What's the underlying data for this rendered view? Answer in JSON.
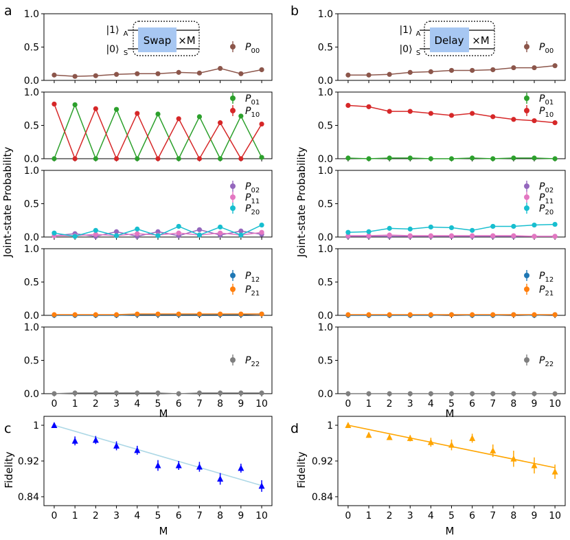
{
  "figure": {
    "panel_labels": [
      "a",
      "b",
      "c",
      "d"
    ],
    "y_axis_label": "Joint-state Probability",
    "x_axis_label": "M",
    "fidelity_label": "Fidelity",
    "colors": {
      "P00": "#8c564b",
      "P01": "#2ca02c",
      "P10": "#d62728",
      "P02": "#9467bd",
      "P11": "#e377c2",
      "P20": "#17becf",
      "P12": "#1f77b4",
      "P21": "#ff7f0e",
      "P22": "#7f7f7f",
      "fit_c": "#add8e6",
      "marker_c": "#0000ff",
      "fit_d": "#ffa500",
      "marker_d": "#ffa500",
      "gate_box": "#a7c7f2"
    },
    "inset_a": {
      "ket_top": "|1⟩",
      "ket_top_sub": "A",
      "ket_bottom": "|0⟩",
      "ket_bottom_sub": "S",
      "gate": "Swap",
      "repeat": "×M"
    },
    "inset_b": {
      "ket_top": "|1⟩",
      "ket_top_sub": "A",
      "ket_bottom": "|0⟩",
      "ket_bottom_sub": "S",
      "gate": "Delay",
      "repeat": "×M"
    }
  },
  "chart_data": [
    {
      "panel": "a",
      "row": 1,
      "type": "line",
      "x": [
        0,
        1,
        2,
        3,
        4,
        5,
        6,
        7,
        8,
        9,
        10
      ],
      "ylim": [
        0,
        1.0
      ],
      "yticks": [
        "0.0",
        "0.5",
        "1.0"
      ],
      "series": [
        {
          "key": "P00",
          "name": "P",
          "sub": "00",
          "values": [
            0.08,
            0.06,
            0.07,
            0.09,
            0.1,
            0.1,
            0.12,
            0.11,
            0.18,
            0.1,
            0.16
          ]
        }
      ]
    },
    {
      "panel": "a",
      "row": 2,
      "type": "line",
      "x": [
        0,
        1,
        2,
        3,
        4,
        5,
        6,
        7,
        8,
        9,
        10
      ],
      "ylim": [
        0,
        1.0
      ],
      "yticks": [
        "0.0",
        "0.5",
        "1.0"
      ],
      "series": [
        {
          "key": "P01",
          "name": "P",
          "sub": "01",
          "values": [
            0.0,
            0.81,
            0.0,
            0.74,
            0.0,
            0.67,
            0.0,
            0.63,
            0.0,
            0.64,
            0.02
          ]
        },
        {
          "key": "P10",
          "name": "P",
          "sub": "10",
          "values": [
            0.82,
            0.0,
            0.75,
            0.0,
            0.68,
            0.0,
            0.6,
            0.0,
            0.54,
            0.0,
            0.52
          ]
        }
      ]
    },
    {
      "panel": "a",
      "row": 3,
      "type": "line",
      "x": [
        0,
        1,
        2,
        3,
        4,
        5,
        6,
        7,
        8,
        9,
        10
      ],
      "ylim": [
        0,
        1.0
      ],
      "yticks": [
        "0.0",
        "0.5",
        "1.0"
      ],
      "series": [
        {
          "key": "P02",
          "name": "P",
          "sub": "02",
          "values": [
            0.02,
            0.05,
            0.01,
            0.08,
            0.01,
            0.08,
            0.02,
            0.11,
            0.03,
            0.09,
            0.04
          ]
        },
        {
          "key": "P11",
          "name": "P",
          "sub": "11",
          "values": [
            0.02,
            0.02,
            0.04,
            0.02,
            0.05,
            0.03,
            0.06,
            0.03,
            0.06,
            0.03,
            0.07
          ]
        },
        {
          "key": "P20",
          "name": "P",
          "sub": "20",
          "values": [
            0.06,
            0.01,
            0.1,
            0.02,
            0.12,
            0.02,
            0.16,
            0.03,
            0.15,
            0.03,
            0.18
          ]
        }
      ]
    },
    {
      "panel": "a",
      "row": 4,
      "type": "line",
      "x": [
        0,
        1,
        2,
        3,
        4,
        5,
        6,
        7,
        8,
        9,
        10
      ],
      "ylim": [
        0,
        1.0
      ],
      "yticks": [
        "0.0",
        "0.5",
        "1.0"
      ],
      "series": [
        {
          "key": "P12",
          "name": "P",
          "sub": "12",
          "values": [
            0.0,
            0.0,
            0.0,
            0.0,
            0.01,
            0.01,
            0.01,
            0.01,
            0.01,
            0.01,
            0.02
          ]
        },
        {
          "key": "P21",
          "name": "P",
          "sub": "21",
          "values": [
            0.01,
            0.01,
            0.01,
            0.01,
            0.02,
            0.02,
            0.02,
            0.02,
            0.02,
            0.02,
            0.02
          ]
        }
      ]
    },
    {
      "panel": "a",
      "row": 5,
      "type": "line",
      "x": [
        0,
        1,
        2,
        3,
        4,
        5,
        6,
        7,
        8,
        9,
        10
      ],
      "ylim": [
        0,
        1.0
      ],
      "yticks": [
        "0.0",
        "0.5",
        "1.0"
      ],
      "series": [
        {
          "key": "P22",
          "name": "P",
          "sub": "22",
          "values": [
            0.0,
            0.01,
            0.01,
            0.01,
            0.01,
            0.01,
            0.0,
            0.01,
            0.01,
            0.01,
            0.01
          ]
        }
      ]
    },
    {
      "panel": "b",
      "row": 1,
      "type": "line",
      "x": [
        0,
        1,
        2,
        3,
        4,
        5,
        6,
        7,
        8,
        9,
        10
      ],
      "ylim": [
        0,
        1.0
      ],
      "yticks": [
        "0.0",
        "0.5",
        "1.0"
      ],
      "series": [
        {
          "key": "P00",
          "name": "P",
          "sub": "00",
          "values": [
            0.08,
            0.08,
            0.09,
            0.12,
            0.13,
            0.15,
            0.15,
            0.16,
            0.19,
            0.19,
            0.22
          ]
        }
      ]
    },
    {
      "panel": "b",
      "row": 2,
      "type": "line",
      "x": [
        0,
        1,
        2,
        3,
        4,
        5,
        6,
        7,
        8,
        9,
        10
      ],
      "ylim": [
        0,
        1.0
      ],
      "yticks": [
        "0.0",
        "0.5",
        "1.0"
      ],
      "series": [
        {
          "key": "P01",
          "name": "P",
          "sub": "01",
          "values": [
            0.01,
            0.0,
            0.01,
            0.01,
            0.0,
            0.0,
            0.01,
            0.0,
            0.01,
            0.01,
            0.0
          ]
        },
        {
          "key": "P10",
          "name": "P",
          "sub": "10",
          "values": [
            0.8,
            0.78,
            0.71,
            0.71,
            0.68,
            0.65,
            0.68,
            0.63,
            0.59,
            0.57,
            0.54
          ]
        }
      ]
    },
    {
      "panel": "b",
      "row": 3,
      "type": "line",
      "x": [
        0,
        1,
        2,
        3,
        4,
        5,
        6,
        7,
        8,
        9,
        10
      ],
      "ylim": [
        0,
        1.0
      ],
      "yticks": [
        "0.0",
        "0.5",
        "1.0"
      ],
      "series": [
        {
          "key": "P02",
          "name": "P",
          "sub": "02",
          "values": [
            0.01,
            0.01,
            0.01,
            0.01,
            0.01,
            0.01,
            0.01,
            0.01,
            0.01,
            0.01,
            0.01
          ]
        },
        {
          "key": "P11",
          "name": "P",
          "sub": "11",
          "values": [
            0.02,
            0.02,
            0.03,
            0.02,
            0.02,
            0.02,
            0.02,
            0.02,
            0.02,
            0.01,
            0.01
          ]
        },
        {
          "key": "P20",
          "name": "P",
          "sub": "20",
          "values": [
            0.07,
            0.08,
            0.13,
            0.12,
            0.15,
            0.14,
            0.1,
            0.16,
            0.16,
            0.18,
            0.19
          ]
        }
      ]
    },
    {
      "panel": "b",
      "row": 4,
      "type": "line",
      "x": [
        0,
        1,
        2,
        3,
        4,
        5,
        6,
        7,
        8,
        9,
        10
      ],
      "ylim": [
        0,
        1.0
      ],
      "yticks": [
        "0.0",
        "0.5",
        "1.0"
      ],
      "series": [
        {
          "key": "P12",
          "name": "P",
          "sub": "12",
          "values": [
            0.0,
            0.0,
            0.0,
            0.0,
            0.0,
            0.01,
            0.0,
            0.0,
            0.01,
            0.0,
            0.01
          ]
        },
        {
          "key": "P21",
          "name": "P",
          "sub": "21",
          "values": [
            0.01,
            0.01,
            0.01,
            0.01,
            0.01,
            0.01,
            0.01,
            0.01,
            0.01,
            0.01,
            0.01
          ]
        }
      ]
    },
    {
      "panel": "b",
      "row": 5,
      "type": "line",
      "x": [
        0,
        1,
        2,
        3,
        4,
        5,
        6,
        7,
        8,
        9,
        10
      ],
      "ylim": [
        0,
        1.0
      ],
      "yticks": [
        "0.0",
        "0.5",
        "1.0"
      ],
      "series": [
        {
          "key": "P22",
          "name": "P",
          "sub": "22",
          "values": [
            0.0,
            0.0,
            0.0,
            0.0,
            0.0,
            0.0,
            0.0,
            0.0,
            0.0,
            0.0,
            0.0
          ]
        }
      ]
    },
    {
      "panel": "c",
      "type": "scatter",
      "x": [
        0,
        1,
        2,
        3,
        4,
        5,
        6,
        7,
        8,
        9,
        10
      ],
      "ylim": [
        0.82,
        1.02
      ],
      "yticks": [
        "0.84",
        "0.92",
        "1"
      ],
      "ytick_values": [
        0.84,
        0.92,
        1.0
      ],
      "values": [
        1.0,
        0.965,
        0.967,
        0.954,
        0.944,
        0.91,
        0.91,
        0.907,
        0.88,
        0.904,
        0.864
      ],
      "errors": [
        0.0,
        0.01,
        0.009,
        0.01,
        0.01,
        0.012,
        0.01,
        0.011,
        0.013,
        0.01,
        0.013
      ],
      "fit": [
        1.0,
        0.865
      ]
    },
    {
      "panel": "d",
      "type": "scatter",
      "x": [
        0,
        1,
        2,
        3,
        4,
        5,
        6,
        7,
        8,
        9,
        10
      ],
      "ylim": [
        0.82,
        1.02
      ],
      "yticks": [
        "0.84",
        "0.92",
        "1"
      ],
      "ytick_values": [
        0.84,
        0.92,
        1.0
      ],
      "values": [
        1.0,
        0.978,
        0.973,
        0.971,
        0.962,
        0.956,
        0.971,
        0.943,
        0.925,
        0.91,
        0.896
      ],
      "errors": [
        0.0,
        0.006,
        0.006,
        0.007,
        0.01,
        0.012,
        0.01,
        0.014,
        0.018,
        0.018,
        0.016
      ],
      "fit": [
        1.0,
        0.905
      ]
    }
  ]
}
